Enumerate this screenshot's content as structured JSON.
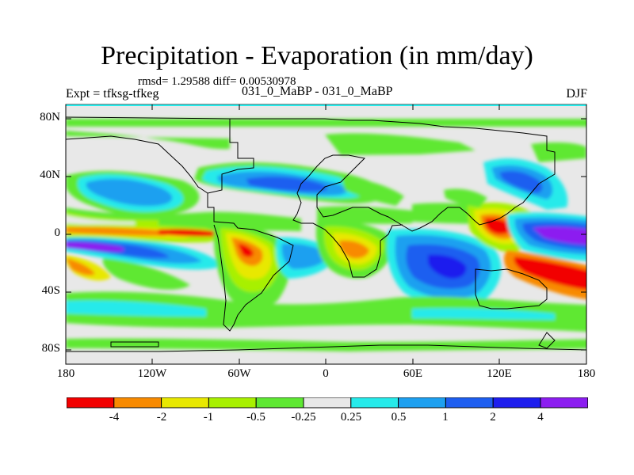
{
  "header": {
    "title": "Precipitation - Evaporation (in mm/day)",
    "stats": "rmsd= 1.29588 diff= 0.00530978",
    "expt": "Expt = tfksg-tfkeg",
    "runs": "031_0_MaBP - 031_0_MaBP",
    "season": "DJF"
  },
  "axes": {
    "x_ticks": [
      "180",
      "120W",
      "60W",
      "0",
      "60E",
      "120E",
      "180"
    ],
    "y_ticks": [
      "80N",
      "40N",
      "0",
      "40S",
      "80S"
    ]
  },
  "legend": {
    "colors": [
      "#f20000",
      "#f88a00",
      "#e8e800",
      "#a8f000",
      "#5ee832",
      "#e8e8e8",
      "#26eaea",
      "#1ea0f0",
      "#1e5ef0",
      "#1e1eee",
      "#8c1ef0"
    ],
    "labels": [
      "-4",
      "-2",
      "-1",
      "-0.5",
      "-0.25",
      "0.25",
      "0.5",
      "1",
      "2",
      "4"
    ]
  },
  "map": {
    "lon_range": [
      -180,
      180
    ],
    "lat_range": [
      -90,
      90
    ],
    "background_color": "#e8e8e8",
    "coastline_color": "#000000"
  }
}
